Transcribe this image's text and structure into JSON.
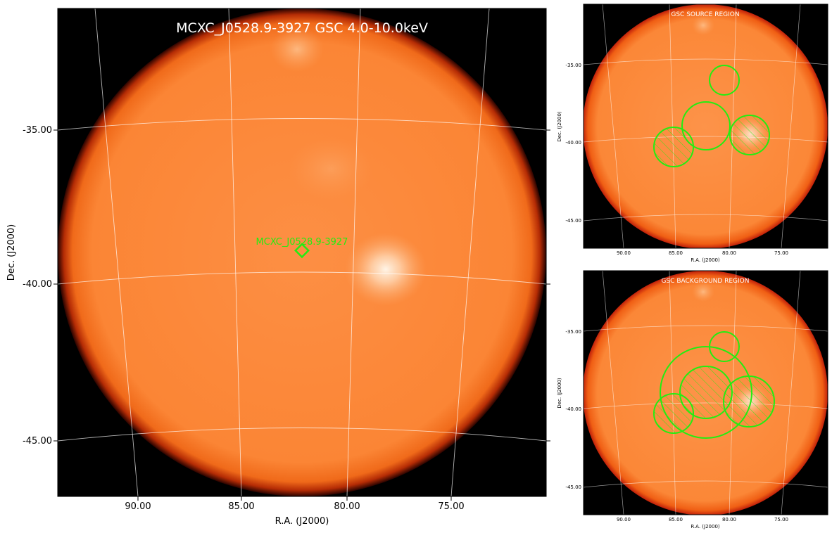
{
  "main": {
    "title": "MCXC_J0528.9-3927 GSC 4.0-10.0keV",
    "source_label": "MCXC_J0528.9-3927",
    "xlabel": "R.A. (J2000)",
    "ylabel": "Dec. (J2000)",
    "xticks": [
      "90.00",
      "85.00",
      "80.00",
      "75.00"
    ],
    "yticks": [
      "-35.00",
      "-40.00",
      "-45.00"
    ]
  },
  "source_panel": {
    "title": "GSC SOURCE REGION",
    "xlabel": "R.A. (J2000)",
    "ylabel": "Dec. (J2000)",
    "xticks": [
      "90.00",
      "85.00",
      "80.00",
      "75.00"
    ],
    "yticks": [
      "-35.00",
      "-40.00",
      "-45.00"
    ]
  },
  "background_panel": {
    "title": "GSC BACKGROUND REGION",
    "xlabel": "R.A. (J2000)",
    "ylabel": "Dec. (J2000)",
    "xticks": [
      "90.00",
      "85.00",
      "80.00",
      "75.00"
    ],
    "yticks": [
      "-35.00",
      "-40.00",
      "-45.00"
    ]
  },
  "colors": {
    "disk": "#fb8a3c",
    "disk_edge": "#3a0500",
    "region": "#22ee11",
    "grid": "#ffffff",
    "background": "#000000"
  }
}
